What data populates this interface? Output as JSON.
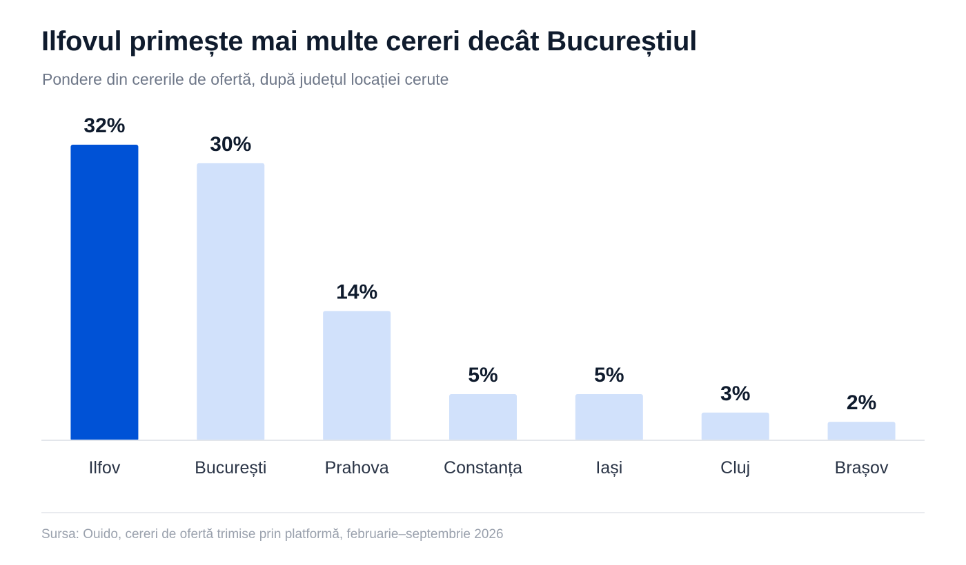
{
  "title": "Ilfovul primește mai multe cereri decât Bucureștiul",
  "subtitle": "Pondere din cererile de ofertă, după județul locației cerute",
  "source": "Sursa: Ouido, cereri de ofertă trimise prin platformă, februarie–septembrie 2026",
  "colors": {
    "highlight": "#0052d6",
    "base": "#d1e1fb",
    "baseline": "#e3e6eb"
  },
  "chart_data": {
    "type": "bar",
    "categories": [
      "Ilfov",
      "București",
      "Prahova",
      "Constanța",
      "Iași",
      "Cluj",
      "Brașov"
    ],
    "values": [
      32,
      30,
      14,
      5,
      5,
      3,
      2
    ],
    "value_labels": [
      "32%",
      "30%",
      "14%",
      "5%",
      "5%",
      "3%",
      "2%"
    ],
    "highlight_category": "Ilfov",
    "unit": "%",
    "ylim": [
      0,
      32
    ],
    "grid": false,
    "legend": "none"
  }
}
